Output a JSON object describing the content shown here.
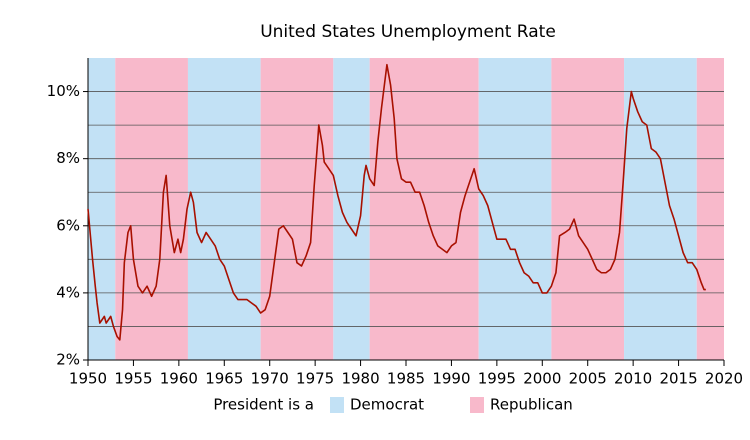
{
  "chart_data": {
    "type": "line",
    "title": "United States Unemployment Rate",
    "legend_title": "President is a",
    "parties": [
      {
        "name": "Democrat",
        "color": "#c2e1f5"
      },
      {
        "name": "Republican",
        "color": "#f8b9cb"
      }
    ],
    "terms": [
      {
        "party": "Democrat",
        "start": 1950,
        "end": 1953
      },
      {
        "party": "Republican",
        "start": 1953,
        "end": 1961
      },
      {
        "party": "Democrat",
        "start": 1961,
        "end": 1969
      },
      {
        "party": "Republican",
        "start": 1969,
        "end": 1977
      },
      {
        "party": "Democrat",
        "start": 1977,
        "end": 1981
      },
      {
        "party": "Republican",
        "start": 1981,
        "end": 1993
      },
      {
        "party": "Democrat",
        "start": 1993,
        "end": 2001
      },
      {
        "party": "Republican",
        "start": 2001,
        "end": 2009
      },
      {
        "party": "Democrat",
        "start": 2009,
        "end": 2017
      },
      {
        "party": "Republican",
        "start": 2017,
        "end": 2020
      }
    ],
    "color": "#a81000",
    "x": [
      1950.0,
      1950.5,
      1950.8,
      1951.0,
      1951.3,
      1951.8,
      1952.0,
      1952.5,
      1952.8,
      1953.2,
      1953.5,
      1953.8,
      1954.0,
      1954.4,
      1954.7,
      1955.0,
      1955.5,
      1956.0,
      1956.5,
      1957.0,
      1957.5,
      1957.9,
      1958.3,
      1958.6,
      1959.0,
      1959.5,
      1959.9,
      1960.2,
      1960.5,
      1960.9,
      1961.3,
      1961.6,
      1962.0,
      1962.5,
      1963.0,
      1963.5,
      1964.0,
      1964.5,
      1965.0,
      1965.5,
      1966.0,
      1966.5,
      1967.0,
      1967.5,
      1968.0,
      1968.5,
      1969.0,
      1969.5,
      1970.0,
      1970.5,
      1971.0,
      1971.5,
      1972.0,
      1972.5,
      1973.0,
      1973.5,
      1974.0,
      1974.5,
      1974.9,
      1975.3,
      1975.4,
      1975.8,
      1976.0,
      1976.5,
      1977.0,
      1977.5,
      1978.0,
      1978.5,
      1979.0,
      1979.5,
      1980.0,
      1980.4,
      1980.6,
      1981.0,
      1981.5,
      1981.9,
      1982.3,
      1982.9,
      1983.3,
      1983.7,
      1984.0,
      1984.5,
      1985.0,
      1985.5,
      1986.0,
      1986.5,
      1987.0,
      1987.5,
      1988.0,
      1988.5,
      1989.0,
      1989.5,
      1990.0,
      1990.5,
      1991.0,
      1991.5,
      1992.0,
      1992.5,
      1993.0,
      1993.5,
      1994.0,
      1994.5,
      1995.0,
      1995.5,
      1996.0,
      1996.5,
      1997.0,
      1997.5,
      1998.0,
      1998.5,
      1999.0,
      1999.5,
      2000.0,
      2000.5,
      2001.0,
      2001.5,
      2001.9,
      2002.5,
      2003.0,
      2003.5,
      2004.0,
      2004.5,
      2005.0,
      2005.5,
      2006.0,
      2006.5,
      2007.0,
      2007.5,
      2008.0,
      2008.5,
      2008.9,
      2009.3,
      2009.8,
      2010.0,
      2010.5,
      2011.0,
      2011.5,
      2012.0,
      2012.5,
      2013.0,
      2013.5,
      2014.0,
      2014.5,
      2015.0,
      2015.5,
      2016.0,
      2016.5,
      2017.0,
      2017.5,
      2017.8,
      2018.0
    ],
    "values": [
      6.5,
      5.0,
      4.2,
      3.7,
      3.1,
      3.3,
      3.1,
      3.3,
      3.0,
      2.7,
      2.6,
      3.5,
      4.9,
      5.8,
      6.0,
      5.0,
      4.2,
      4.0,
      4.2,
      3.9,
      4.2,
      5.0,
      7.0,
      7.5,
      6.0,
      5.2,
      5.6,
      5.2,
      5.6,
      6.5,
      7.0,
      6.7,
      5.8,
      5.5,
      5.8,
      5.6,
      5.4,
      5.0,
      4.8,
      4.4,
      4.0,
      3.8,
      3.8,
      3.8,
      3.7,
      3.6,
      3.4,
      3.5,
      3.9,
      4.9,
      5.9,
      6.0,
      5.8,
      5.6,
      4.9,
      4.8,
      5.1,
      5.5,
      7.2,
      8.6,
      9.0,
      8.4,
      7.9,
      7.7,
      7.5,
      6.9,
      6.4,
      6.1,
      5.9,
      5.7,
      6.3,
      7.5,
      7.8,
      7.4,
      7.2,
      8.5,
      9.5,
      10.8,
      10.2,
      9.2,
      8.0,
      7.4,
      7.3,
      7.3,
      7.0,
      7.0,
      6.6,
      6.1,
      5.7,
      5.4,
      5.3,
      5.2,
      5.4,
      5.5,
      6.4,
      6.9,
      7.3,
      7.7,
      7.1,
      6.9,
      6.6,
      6.1,
      5.6,
      5.6,
      5.6,
      5.3,
      5.3,
      4.9,
      4.6,
      4.5,
      4.3,
      4.3,
      4.0,
      4.0,
      4.2,
      4.6,
      5.7,
      5.8,
      5.9,
      6.2,
      5.7,
      5.5,
      5.3,
      5.0,
      4.7,
      4.6,
      4.6,
      4.7,
      5.0,
      5.8,
      7.3,
      8.9,
      10.0,
      9.8,
      9.4,
      9.1,
      9.0,
      8.3,
      8.2,
      8.0,
      7.3,
      6.6,
      6.2,
      5.7,
      5.2,
      4.9,
      4.9,
      4.7,
      4.3,
      4.1,
      4.1
    ],
    "xlim": [
      1950,
      2020
    ],
    "xticks": [
      1950,
      1955,
      1960,
      1965,
      1970,
      1975,
      1980,
      1985,
      1990,
      1995,
      2000,
      2005,
      2010,
      2015,
      2020
    ],
    "ylim": [
      2,
      11
    ],
    "yticks": [
      {
        "value": 2,
        "label": "2%"
      },
      {
        "value": 4,
        "label": "4%"
      },
      {
        "value": 6,
        "label": "6%"
      },
      {
        "value": 8,
        "label": "8%"
      },
      {
        "value": 10,
        "label": "10%"
      }
    ],
    "grid_lines": [
      3,
      4,
      5,
      6,
      7,
      8,
      9,
      10
    ],
    "grid": true
  }
}
